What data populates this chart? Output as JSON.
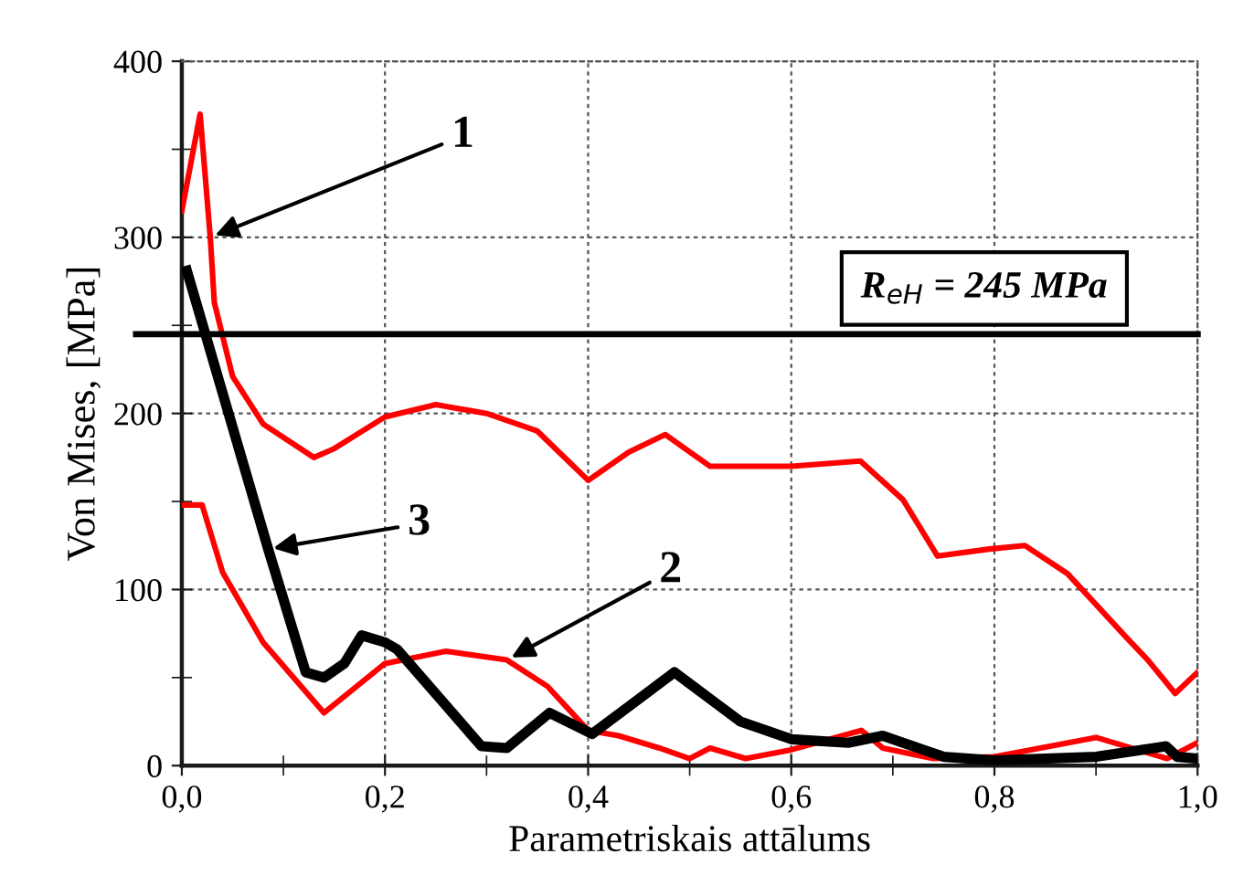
{
  "chart_data": {
    "type": "line",
    "xlabel": "Parametriskais attālums",
    "ylabel": "Von Mises, [MPa]",
    "xlim": [
      0,
      1.0
    ],
    "ylim": [
      0,
      400
    ],
    "xticks": [
      {
        "value": 0,
        "label": "0,0"
      },
      {
        "value": 0.1,
        "label": null
      },
      {
        "value": 0.2,
        "label": "0,2"
      },
      {
        "value": 0.3,
        "label": null
      },
      {
        "value": 0.4,
        "label": "0,4"
      },
      {
        "value": 0.5,
        "label": null
      },
      {
        "value": 0.6,
        "label": "0,6"
      },
      {
        "value": 0.7,
        "label": null
      },
      {
        "value": 0.8,
        "label": "0,8"
      },
      {
        "value": 0.9,
        "label": null
      },
      {
        "value": 1.0,
        "label": "1,0"
      }
    ],
    "yticks": [
      0,
      {
        "value": 50,
        "label": null
      },
      100,
      {
        "value": 150,
        "label": null
      },
      200,
      {
        "value": 250,
        "label": null
      },
      300,
      {
        "value": 350,
        "label": null
      },
      400
    ],
    "grid": true,
    "line_style": "solid",
    "marker": "none",
    "series": [
      {
        "color": "#ff0000",
        "x": [
          0,
          0.018,
          0.028,
          0.032,
          0.05,
          0.08,
          0.13,
          0.15,
          0.2,
          0.25,
          0.3,
          0.35,
          0.4,
          0.44,
          0.476,
          0.52,
          0.6,
          0.668,
          0.71,
          0.744,
          0.795,
          0.83,
          0.872,
          0.928,
          0.951,
          0.978,
          1.0
        ],
        "values": [
          315,
          370,
          300,
          263,
          221,
          194,
          175,
          180,
          198,
          205,
          200,
          190,
          162,
          178,
          188,
          170,
          170,
          173,
          151,
          119,
          123,
          125,
          109,
          74,
          60,
          41,
          53
        ]
      },
      {
        "color": "#ff0000",
        "x": [
          0,
          0.02,
          0.04,
          0.08,
          0.14,
          0.2,
          0.26,
          0.32,
          0.36,
          0.4,
          0.43,
          0.47,
          0.5,
          0.52,
          0.555,
          0.6,
          0.669,
          0.69,
          0.74,
          0.8,
          0.9,
          0.97,
          1.0
        ],
        "values": [
          148,
          148,
          110,
          70,
          30,
          58,
          65,
          60,
          45,
          20,
          17,
          10,
          4,
          10,
          4,
          9,
          20,
          10,
          4,
          5,
          16,
          4,
          13
        ]
      },
      {
        "color": "#000000",
        "x": [
          0.005,
          0.085,
          0.122,
          0.14,
          0.16,
          0.177,
          0.2,
          0.212,
          0.295,
          0.32,
          0.362,
          0.404,
          0.485,
          0.55,
          0.6,
          0.656,
          0.69,
          0.75,
          0.8,
          0.9,
          0.969,
          0.98,
          1.0
        ],
        "values": [
          281,
          123,
          53,
          50,
          58,
          74,
          70,
          66,
          11,
          10,
          30,
          18,
          53,
          25,
          15,
          13,
          17,
          5,
          3,
          5,
          11,
          5,
          4
        ]
      }
    ],
    "ref_lines": [
      {
        "axis": "y",
        "value": 245,
        "label": "R$_{eH}$ = 245 MPa",
        "color": "#000000"
      }
    ],
    "annotations": [
      {
        "text": "1",
        "x": 0.028,
        "y": 300
      },
      {
        "text": "3",
        "x": 0.085,
        "y": 123
      },
      {
        "text": "2",
        "x": 0.32,
        "y": 60
      }
    ]
  }
}
